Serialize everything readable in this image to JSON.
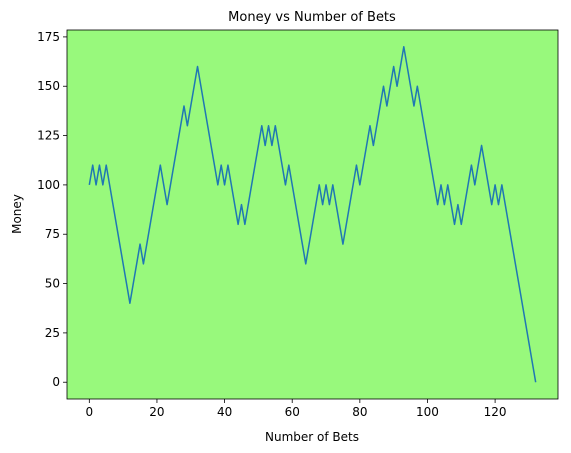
{
  "chart_data": {
    "type": "line",
    "title": "Money vs Number of Bets",
    "x_label": "Number of Bets",
    "y_label": "Money",
    "x": [
      0,
      1,
      2,
      3,
      4,
      5,
      6,
      7,
      8,
      9,
      10,
      11,
      12,
      13,
      14,
      15,
      16,
      17,
      18,
      19,
      20,
      21,
      22,
      23,
      24,
      25,
      26,
      27,
      28,
      29,
      30,
      31,
      32,
      33,
      34,
      35,
      36,
      37,
      38,
      39,
      40,
      41,
      42,
      43,
      44,
      45,
      46,
      47,
      48,
      49,
      50,
      51,
      52,
      53,
      54,
      55,
      56,
      57,
      58,
      59,
      60,
      61,
      62,
      63,
      64,
      65,
      66,
      67,
      68,
      69,
      70,
      71,
      72,
      73,
      74,
      75,
      76,
      77,
      78,
      79,
      80,
      81,
      82,
      83,
      84,
      85,
      86,
      87,
      88,
      89,
      90,
      91,
      92,
      93,
      94,
      95,
      96,
      97,
      98,
      99,
      100,
      101,
      102,
      103,
      104,
      105,
      106,
      107,
      108,
      109,
      110,
      111,
      112,
      113,
      114,
      115,
      116,
      117,
      118,
      119,
      120,
      121,
      122,
      123,
      124,
      125,
      126,
      127,
      128,
      129,
      130,
      131,
      132
    ],
    "values": [
      100,
      110,
      100,
      110,
      100,
      110,
      100,
      90,
      80,
      70,
      60,
      50,
      40,
      50,
      60,
      70,
      60,
      70,
      80,
      90,
      100,
      110,
      100,
      90,
      100,
      110,
      120,
      130,
      140,
      130,
      140,
      150,
      160,
      150,
      140,
      130,
      120,
      110,
      100,
      110,
      100,
      110,
      100,
      90,
      80,
      90,
      80,
      90,
      100,
      110,
      120,
      130,
      120,
      130,
      120,
      130,
      120,
      110,
      100,
      110,
      100,
      90,
      80,
      70,
      60,
      70,
      80,
      90,
      100,
      90,
      100,
      90,
      100,
      90,
      80,
      70,
      80,
      90,
      100,
      110,
      100,
      110,
      120,
      130,
      120,
      130,
      140,
      150,
      140,
      150,
      160,
      150,
      160,
      170,
      160,
      150,
      140,
      150,
      140,
      130,
      120,
      110,
      100,
      90,
      100,
      90,
      100,
      90,
      80,
      90,
      80,
      90,
      100,
      110,
      100,
      110,
      120,
      110,
      100,
      90,
      100,
      90,
      100,
      90,
      80,
      70,
      60,
      50,
      40,
      30,
      20,
      10,
      0
    ],
    "color": "#1f77b4",
    "background": "#98f97c",
    "xlim": [
      -6.6,
      138.6
    ],
    "ylim": [
      -8.5,
      178.5
    ],
    "xticks": [
      0,
      20,
      40,
      60,
      80,
      100,
      120
    ],
    "yticks": [
      0,
      25,
      50,
      75,
      100,
      125,
      150,
      175
    ],
    "grid": false
  }
}
